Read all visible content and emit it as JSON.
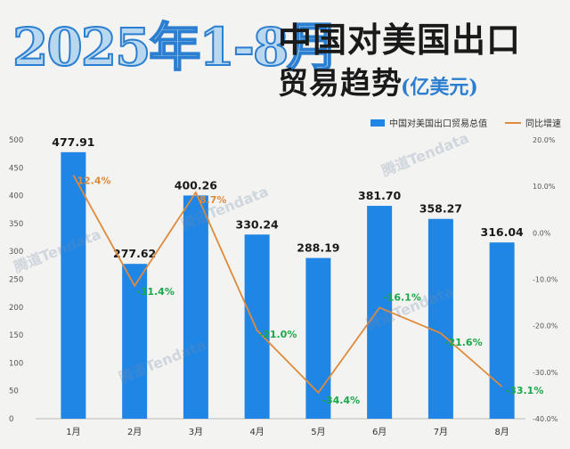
{
  "header": {
    "big_title": "2025年1-8月",
    "title_line1": "中国对美国出口",
    "title_line2": "贸易趋势",
    "title_unit": "(亿美元)"
  },
  "legend": {
    "bar_label": "中国对美国出口贸易总值",
    "line_label": "同比增速"
  },
  "watermark": "腾道Tendata",
  "colors": {
    "bar": "#1f86e6",
    "line": "#e08a3c",
    "positive_label": "#e08a3c",
    "negative_label": "#1aa84a",
    "value_label": "#1a1a1a"
  },
  "chart_data": {
    "type": "bar",
    "categories": [
      "1月",
      "2月",
      "3月",
      "4月",
      "5月",
      "6月",
      "7月",
      "8月"
    ],
    "series": [
      {
        "name": "中国对美国出口贸易总值",
        "type": "bar",
        "axis": "left",
        "values": [
          477.91,
          277.62,
          400.26,
          330.24,
          288.19,
          381.7,
          358.27,
          316.04
        ],
        "labels": [
          "477.91",
          "277.62",
          "400.26",
          "330.24",
          "288.19",
          "381.70",
          "358.27",
          "316.04"
        ]
      },
      {
        "name": "同比增速",
        "type": "line",
        "axis": "right",
        "values": [
          12.4,
          -11.4,
          8.7,
          -21.0,
          -34.4,
          -16.1,
          -21.6,
          -33.1
        ],
        "labels": [
          "12.4%",
          "-11.4%",
          "8.7%",
          "-21.0%",
          "-34.4%",
          "-16.1%",
          "-21.6%",
          "-33.1%"
        ]
      }
    ],
    "y_left": {
      "range": [
        0,
        500
      ],
      "ticks": [
        "0",
        "50",
        "100",
        "150",
        "200",
        "250",
        "300",
        "350",
        "400",
        "450",
        "500"
      ]
    },
    "y_right": {
      "range": [
        -40,
        20
      ],
      "ticks": [
        "-40.0%",
        "-30.0%",
        "-20.0%",
        "-10.0%",
        "0.0%",
        "10.0%",
        "20.0%"
      ]
    },
    "legend_position": "top-right",
    "grid": false
  }
}
